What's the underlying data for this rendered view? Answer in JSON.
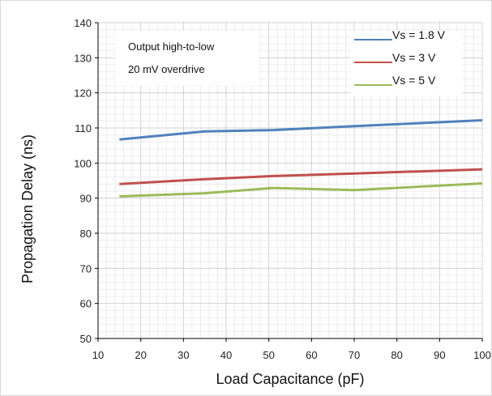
{
  "chart_data": {
    "type": "line",
    "title": "",
    "xlabel": "Load Capacitance (pF)",
    "ylabel": "Propagation Delay (ns)",
    "xlim": [
      10,
      100
    ],
    "ylim": [
      50,
      140
    ],
    "xticks": [
      10,
      20,
      30,
      40,
      50,
      60,
      70,
      80,
      90,
      100
    ],
    "yticks": [
      50,
      60,
      70,
      80,
      90,
      100,
      110,
      120,
      130,
      140
    ],
    "grid": true,
    "legend_position": "top-right",
    "annotations": [
      "Output high-to-low",
      "20 mV overdrive"
    ],
    "series": [
      {
        "name": "Vs = 1.8 V",
        "color": "#4f81bd",
        "x": [
          15,
          35,
          51,
          70,
          100
        ],
        "y": [
          106.7,
          109.0,
          109.4,
          110.5,
          112.2
        ]
      },
      {
        "name": "Vs = 3 V",
        "color": "#c0504d",
        "x": [
          15,
          35,
          51,
          70,
          100
        ],
        "y": [
          94.0,
          95.4,
          96.3,
          97.0,
          98.2
        ]
      },
      {
        "name": "Vs = 5 V",
        "color": "#9bbb59",
        "x": [
          15,
          35,
          51,
          70,
          100
        ],
        "y": [
          90.5,
          91.4,
          92.9,
          92.3,
          94.2
        ]
      }
    ]
  }
}
